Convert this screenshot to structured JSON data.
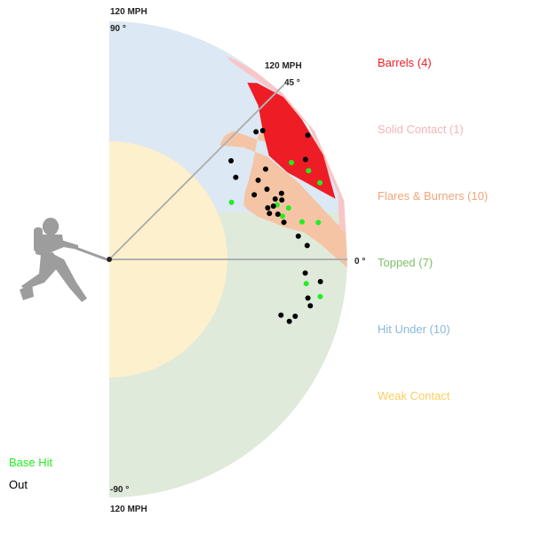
{
  "chart_data": {
    "type": "scatter",
    "coordinate_system": "polar: radius = exit velocity (mph), angle = launch angle (degrees)",
    "r_max_mph": 120,
    "angle_range_deg": [
      -90,
      90
    ],
    "speed_label": "120 MPH",
    "angle_labels": [
      "90 °",
      "45 °",
      "0 °",
      "-90 °"
    ],
    "categories": [
      {
        "name": "Barrels (4)",
        "color": "#ee1c25"
      },
      {
        "name": "Solid Contact (1)",
        "color": "#f6b5b8"
      },
      {
        "name": "Flares & Burners (10)",
        "color": "#f2a57a"
      },
      {
        "name": "Topped (7)",
        "color": "#7fbf6a"
      },
      {
        "name": "Hit Under (10)",
        "color": "#89b8da"
      },
      {
        "name": "Weak Contact",
        "color": "#f9cf61"
      }
    ],
    "series": [
      {
        "name": "Base Hit",
        "color": "#22ee22",
        "points": [
          [
            104,
            28
          ],
          [
            110,
            24
          ],
          [
            113,
            20
          ],
          [
            68,
            25
          ],
          [
            89,
            18
          ],
          [
            94,
            16
          ],
          [
            90,
            14
          ],
          [
            99,
            11
          ],
          [
            107,
            10
          ],
          [
            100,
            -7
          ],
          [
            108,
            -10
          ]
        ]
      },
      {
        "name": "Out",
        "color": "#000000",
        "points": [
          [
            118,
            32
          ],
          [
            111,
            27
          ],
          [
            98,
            41
          ],
          [
            101,
            40
          ],
          [
            79,
            39
          ],
          [
            76,
            33
          ],
          [
            91,
            30
          ],
          [
            85,
            28
          ],
          [
            89,
            20
          ],
          [
            84,
            18
          ],
          [
            87,
            18
          ],
          [
            92,
            19
          ],
          [
            93,
            21
          ],
          [
            80,
            24
          ],
          [
            87,
            24
          ],
          [
            84,
            16
          ],
          [
            88,
            15
          ],
          [
            90,
            12
          ],
          [
            96,
            7
          ],
          [
            100,
            4
          ],
          [
            99,
            -4
          ],
          [
            107,
            -6
          ],
          [
            102,
            -11
          ],
          [
            104,
            -13
          ],
          [
            98,
            -17
          ],
          [
            96,
            -19
          ],
          [
            91,
            -18
          ]
        ]
      }
    ]
  }
}
